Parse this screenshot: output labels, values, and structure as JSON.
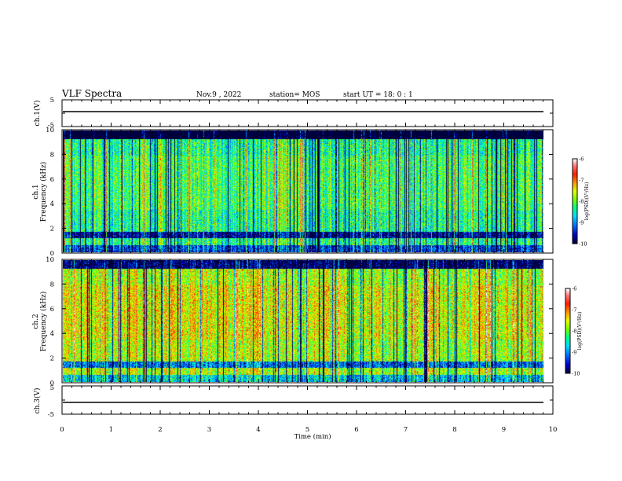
{
  "header": {
    "title": "VLF Spectra",
    "date": "Nov.9 , 2022",
    "station": "station= MOS",
    "start": "start UT = 18: 0 : 1"
  },
  "xaxis": {
    "label": "Time (min)",
    "ticks": [
      "0",
      "1",
      "2",
      "3",
      "4",
      "5",
      "6",
      "7",
      "8",
      "9",
      "10"
    ]
  },
  "panels": {
    "ch1_wave": {
      "ylabel": "ch.1(V)",
      "ticks": [
        "5",
        "-5"
      ]
    },
    "ch1_spec": {
      "ylabel": "ch.1\nFrequency (kHz)",
      "ylabel_line1": "ch.1",
      "ylabel_line2": "Frequency (kHz)",
      "ticks": [
        "10",
        "8",
        "6",
        "4",
        "2",
        "0"
      ]
    },
    "ch2_spec": {
      "ylabel_line1": "ch.2",
      "ylabel_line2": "Frequency (kHz)",
      "ticks": [
        "10",
        "8",
        "6",
        "4",
        "2",
        "0"
      ]
    },
    "ch3_wave": {
      "ylabel": "ch.3(V)",
      "ticks": [
        "5",
        "-5"
      ]
    }
  },
  "colorbar": {
    "label": "log(PSD)(V²/Hz)",
    "ticks": [
      "-6",
      "-7",
      "-8",
      "-9",
      "-10"
    ],
    "colors": [
      "#000080",
      "#0000ff",
      "#00bfff",
      "#00ff80",
      "#80ff00",
      "#ffff00",
      "#ff8000",
      "#ff0000",
      "#ff8080",
      "#ffffff"
    ]
  },
  "chart_data": [
    {
      "type": "line",
      "title": "",
      "xlabel": "Time (min)",
      "ylabel": "ch.1(V)",
      "xlim": [
        0,
        10
      ],
      "ylim": [
        -5,
        5
      ],
      "series": [
        {
          "values_approx": 0
        }
      ]
    },
    {
      "type": "heatmap",
      "xlabel": "Time (min)",
      "ylabel": "Frequency (kHz)",
      "xlim": [
        0,
        9.85
      ],
      "ylim": [
        0,
        10
      ],
      "color_scale": "log(PSD)(V²/Hz)",
      "color_range": [
        -10,
        -6
      ]
    },
    {
      "type": "heatmap",
      "xlabel": "Time (min)",
      "ylabel": "Frequency (kHz)",
      "xlim": [
        0,
        9.85
      ],
      "ylim": [
        0,
        10
      ],
      "color_scale": "log(PSD)(V²/Hz)",
      "color_range": [
        -10,
        -6
      ]
    },
    {
      "type": "line",
      "xlabel": "Time (min)",
      "ylabel": "ch.3(V)",
      "xlim": [
        0,
        10
      ],
      "ylim": [
        -5,
        5
      ],
      "series": [
        {
          "values_approx": 0
        }
      ]
    }
  ]
}
